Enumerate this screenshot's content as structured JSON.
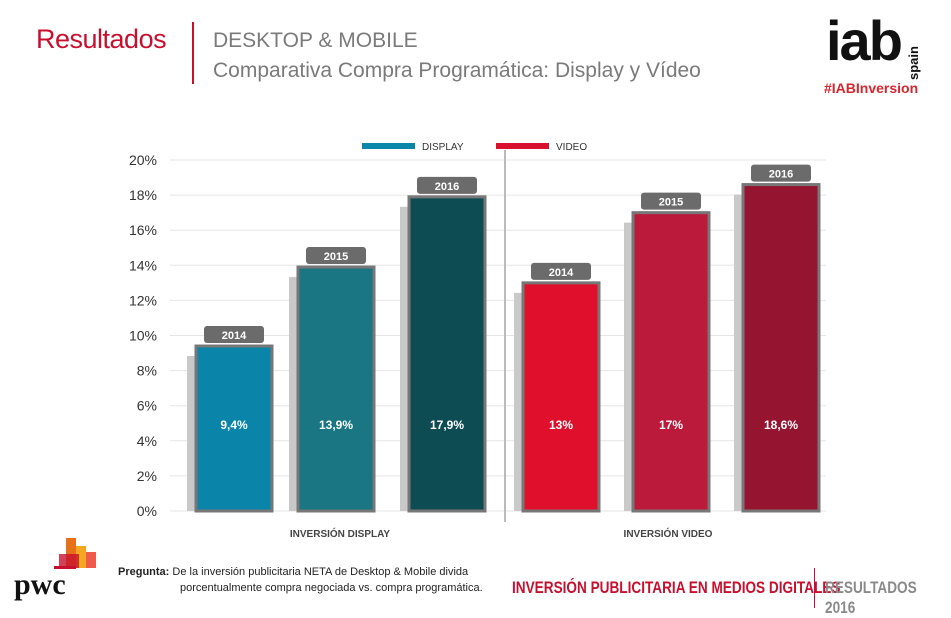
{
  "header": {
    "section": "Resultados",
    "title": "DESKTOP & MOBILE",
    "subtitle": "Comparativa Compra Programática: Display y Vídeo"
  },
  "logo": {
    "brand": "iab",
    "country": "spain",
    "hashtag": "#IABInversion"
  },
  "chart_data": {
    "type": "bar",
    "title": "Comparativa Compra Programática: Display y Vídeo",
    "ylim": [
      0,
      20
    ],
    "yticks": [
      "0%",
      "2%",
      "4%",
      "6%",
      "8%",
      "10%",
      "12%",
      "14%",
      "16%",
      "18%",
      "20%"
    ],
    "legend": [
      {
        "name": "DISPLAY",
        "color": "#0a86a9"
      },
      {
        "name": "VIDEO",
        "color": "#d8112f"
      }
    ],
    "legend_position": "top",
    "groups": [
      {
        "label": "INVERSIÓN DISPLAY",
        "bars": [
          {
            "year": "2014",
            "value": 9.4,
            "label": "9,4%",
            "color": "#0a84a8"
          },
          {
            "year": "2015",
            "value": 13.9,
            "label": "13,9%",
            "color": "#1a7683"
          },
          {
            "year": "2016",
            "value": 17.9,
            "label": "17,9%",
            "color": "#0e4c54"
          }
        ]
      },
      {
        "label": "INVERSIÓN VIDEO",
        "bars": [
          {
            "year": "2014",
            "value": 13,
            "label": "13%",
            "color": "#e0102d"
          },
          {
            "year": "2015",
            "value": 17,
            "label": "17%",
            "color": "#bb1a3a"
          },
          {
            "year": "2016",
            "value": 18.6,
            "label": "18,6%",
            "color": "#951531"
          }
        ]
      }
    ]
  },
  "footer": {
    "question_label": "Pregunta:",
    "question_line1": "De la inversión publicitaria NETA de Desktop & Mobile divida",
    "question_line2": "porcentualmente compra negociada vs. compra programática.",
    "report": "INVERSIÓN PUBLICITARIA EN MEDIOS DIGITALES",
    "results": "RESULTADOS 2016",
    "pwc": "pwc"
  }
}
